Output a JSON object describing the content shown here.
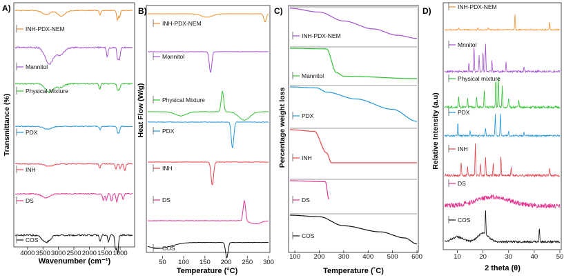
{
  "chart_data": [
    {
      "panel": "A)",
      "type": "line",
      "title": "",
      "xlabel": "Wavenumber (cm⁻¹)",
      "ylabel": "Transmittance (%)",
      "xlim": [
        4400,
        600
      ],
      "xticks": [
        "4000",
        "3500",
        "3000",
        "2500",
        "2000",
        "1500",
        "1000"
      ],
      "series": [
        {
          "name": "INH-PDX-NEM",
          "color": "#f28c28",
          "peaks": [
            [
              3400,
              0.35
            ],
            [
              2900,
              0.5
            ],
            [
              1650,
              0.45
            ],
            [
              1090,
              0.85
            ],
            [
              1020,
              0.6
            ]
          ]
        },
        {
          "name": "Mannitol",
          "color": "#a24fd0",
          "peaks": [
            [
              3300,
              0.8
            ],
            [
              2950,
              0.35
            ],
            [
              1420,
              0.45
            ],
            [
              1080,
              0.6
            ],
            [
              1020,
              0.55
            ]
          ]
        },
        {
          "name": "Physical Mixture",
          "color": "#2fc12f",
          "peaks": [
            [
              3300,
              0.55
            ],
            [
              2950,
              0.25
            ],
            [
              1660,
              0.35
            ],
            [
              1080,
              0.45
            ],
            [
              1020,
              0.4
            ]
          ]
        },
        {
          "name": "PDX",
          "color": "#2096d8",
          "peaks": [
            [
              3350,
              0.25
            ],
            [
              1650,
              0.3
            ],
            [
              1080,
              0.55
            ],
            [
              1030,
              0.5
            ]
          ]
        },
        {
          "name": "INH",
          "color": "#e8414a",
          "peaks": [
            [
              3300,
              0.2
            ],
            [
              1660,
              0.35
            ],
            [
              1140,
              0.45
            ],
            [
              1000,
              0.4
            ],
            [
              850,
              0.55
            ]
          ]
        },
        {
          "name": "DS",
          "color": "#e2338f",
          "peaks": [
            [
              3400,
              0.3
            ],
            [
              1550,
              0.5
            ],
            [
              1450,
              0.5
            ],
            [
              1280,
              0.55
            ],
            [
              1110,
              0.6
            ],
            [
              900,
              0.45
            ]
          ]
        },
        {
          "name": "COS",
          "color": "#111111",
          "peaks": [
            [
              3400,
              0.35
            ],
            [
              1650,
              0.3
            ],
            [
              1380,
              0.35
            ],
            [
              1150,
              0.7
            ],
            [
              1080,
              0.95
            ]
          ]
        }
      ]
    },
    {
      "panel": "B)",
      "type": "line",
      "xlabel": "Temperature (°C)",
      "ylabel": "Heat Flow (W/g)",
      "xlim": [
        25,
        300
      ],
      "xticks": [
        "50",
        "100",
        "150",
        "200",
        "250",
        "300"
      ],
      "series": [
        {
          "name": "INH-PDX-NEM",
          "color": "#f28c28",
          "events": [
            [
              160,
              -0.4
            ],
            [
              292,
              -1.0
            ]
          ]
        },
        {
          "name": "Mannitol",
          "color": "#a24fd0",
          "events": [
            [
              168,
              -1.0
            ]
          ]
        },
        {
          "name": "Physical Mixture",
          "color": "#2fc12f",
          "events": [
            [
              100,
              -0.2
            ],
            [
              195,
              1.0
            ],
            [
              245,
              -0.4
            ]
          ]
        },
        {
          "name": "PDX",
          "color": "#2096d8",
          "events": [
            [
              218,
              -1.0
            ]
          ]
        },
        {
          "name": "INH",
          "color": "#e8414a",
          "events": [
            [
              172,
              -1.0
            ]
          ]
        },
        {
          "name": "DS",
          "color": "#e2338f",
          "events": [
            [
              245,
              1.0
            ],
            [
              270,
              -0.15
            ]
          ]
        },
        {
          "name": "COS",
          "color": "#111111",
          "events": [
            [
              205,
              -0.8
            ]
          ]
        }
      ]
    },
    {
      "panel": "C)",
      "type": "line",
      "xlabel": "Temperature (˚C)",
      "ylabel": "Percentage weight loss",
      "xlim": [
        80,
        600
      ],
      "xticks": [
        "100",
        "200",
        "300",
        "400",
        "500",
        "600"
      ],
      "series": [
        {
          "name": "INH-PDX-NEM",
          "color": "#a24fd0",
          "profile": [
            [
              80,
              1.0
            ],
            [
              200,
              0.88
            ],
            [
              300,
              0.6
            ],
            [
              420,
              0.35
            ],
            [
              520,
              0.15
            ],
            [
              600,
              0.05
            ]
          ]
        },
        {
          "name": "Mannitol",
          "color": "#2fc12f",
          "profile": [
            [
              80,
              1.0
            ],
            [
              230,
              0.98
            ],
            [
              270,
              0.2
            ],
            [
              300,
              0.08
            ],
            [
              600,
              0.0
            ]
          ]
        },
        {
          "name": "PDX",
          "color": "#2096d8",
          "profile": [
            [
              80,
              1.0
            ],
            [
              190,
              0.97
            ],
            [
              230,
              0.85
            ],
            [
              350,
              0.65
            ],
            [
              500,
              0.35
            ],
            [
              600,
              0.0
            ]
          ]
        },
        {
          "name": "INH",
          "color": "#e8414a",
          "profile": [
            [
              80,
              1.0
            ],
            [
              180,
              0.95
            ],
            [
              230,
              0.3
            ],
            [
              250,
              0.0
            ],
            [
              600,
              0.0
            ]
          ]
        },
        {
          "name": "DS",
          "color": "#e2338f",
          "profile": [
            [
              80,
              1.0
            ],
            [
              225,
              0.95
            ],
            [
              240,
              0.0
            ]
          ]
        },
        {
          "name": "COS",
          "color": "#111111",
          "profile": [
            [
              80,
              1.0
            ],
            [
              200,
              0.95
            ],
            [
              300,
              0.65
            ],
            [
              450,
              0.45
            ],
            [
              550,
              0.25
            ],
            [
              600,
              0.05
            ]
          ]
        }
      ]
    },
    {
      "panel": "D)",
      "type": "line",
      "xlabel": "2 theta (θ)",
      "ylabel": "Relative Intensity (a.u)",
      "xlim": [
        5,
        50
      ],
      "xticks": [
        "10",
        "20",
        "30",
        "40",
        "50"
      ],
      "series": [
        {
          "name": "INH-PDX-NEM",
          "color": "#f28c28",
          "peaks": [
            [
              10.5,
              0.1
            ],
            [
              18,
              0.15
            ],
            [
              22,
              0.15
            ],
            [
              32.5,
              1.0
            ],
            [
              46,
              0.5
            ]
          ]
        },
        {
          "name": "Mnnitol",
          "color": "#a24fd0",
          "peaks": [
            [
              14.5,
              0.3
            ],
            [
              16.5,
              0.9
            ],
            [
              18.5,
              0.6
            ],
            [
              20,
              0.7
            ],
            [
              21,
              1.0
            ],
            [
              23.5,
              0.4
            ],
            [
              29,
              0.35
            ],
            [
              36,
              0.2
            ]
          ]
        },
        {
          "name": "Physical mixture",
          "color": "#2fc12f",
          "peaks": [
            [
              10.5,
              0.35
            ],
            [
              14,
              0.3
            ],
            [
              17.5,
              0.35
            ],
            [
              20.5,
              0.5
            ],
            [
              25,
              0.9
            ],
            [
              26,
              1.0
            ],
            [
              27.5,
              0.7
            ],
            [
              30,
              0.3
            ],
            [
              34,
              0.2
            ]
          ]
        },
        {
          "name": "PDX",
          "color": "#2096d8",
          "peaks": [
            [
              10.2,
              0.55
            ],
            [
              15,
              0.2
            ],
            [
              21,
              0.3
            ],
            [
              24.8,
              0.9
            ],
            [
              26.8,
              1.0
            ],
            [
              30,
              0.2
            ],
            [
              36,
              0.15
            ]
          ]
        },
        {
          "name": "INH",
          "color": "#e8414a",
          "peaks": [
            [
              11.5,
              0.4
            ],
            [
              14,
              0.3
            ],
            [
              17,
              1.0
            ],
            [
              19,
              0.4
            ],
            [
              21,
              0.6
            ],
            [
              24,
              0.35
            ],
            [
              27,
              0.6
            ],
            [
              31,
              0.25
            ],
            [
              46,
              0.2
            ]
          ]
        },
        {
          "name": "DS",
          "color": "#e2338f",
          "halo": [
            [
              24,
              0.9
            ]
          ]
        },
        {
          "name": "COS",
          "color": "#111111",
          "halo": [
            [
              10,
              0.4
            ],
            [
              20,
              0.7
            ]
          ],
          "peaks": [
            [
              21,
              0.9
            ],
            [
              42,
              0.5
            ]
          ]
        }
      ]
    }
  ]
}
